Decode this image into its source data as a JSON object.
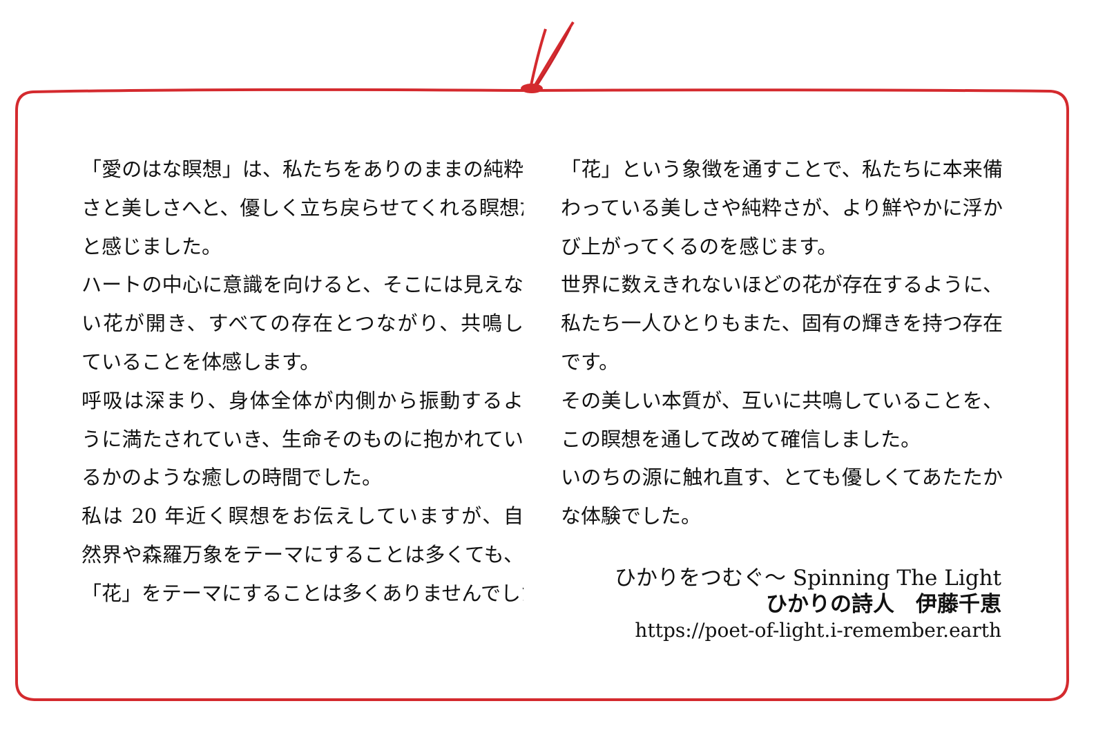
{
  "colors": {
    "frame": "#d42a2e",
    "text": "#111111"
  },
  "left_column": [
    "「愛のはな瞑想」は、私たちをありのままの純粋",
    "さと美しさへと、優しく立ち戻らせてくれる瞑想だ",
    "と感じました。",
    "ハートの中心に意識を向けると、そこには見えな",
    "い花が開き、すべての存在とつながり、共鳴し",
    "ていることを体感します。",
    "呼吸は深まり、身体全体が内側から振動するよ",
    "うに満たされていき、生命そのものに抱かれてい",
    "るかのような癒しの時間でした。",
    "私は 20 年近く瞑想をお伝えしていますが、自",
    "然界や森羅万象をテーマにすることは多くても、",
    "「花」をテーマにすることは多くありませんでした。"
  ],
  "right_column": [
    "「花」という象徴を通すことで、私たちに本来備",
    "わっている美しさや純粋さが、より鮮やかに浮か",
    "び上がってくるのを感じます。",
    "世界に数えきれないほどの花が存在するように、",
    "私たち一人ひとりもまた、固有の輝きを持つ存在",
    "です。",
    "その美しい本質が、互いに共鳴していることを、",
    "この瞑想を通して改めて確信しました。",
    "いのちの源に触れ直す、とても優しくてあたたか",
    "な体験でした。"
  ],
  "signature": {
    "title": "ひかりをつむぐ～ Spinning The Light",
    "author": "ひかりの詩人　伊藤千恵",
    "url": "https://poet-of-light.i-remember.earth"
  }
}
